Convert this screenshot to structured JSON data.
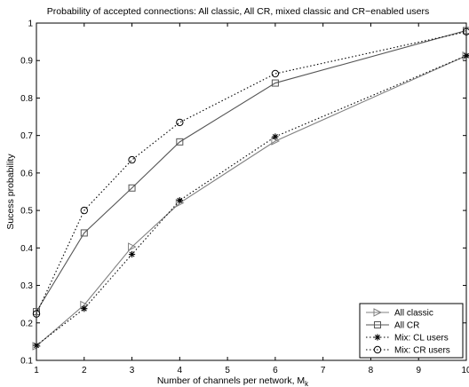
{
  "chart_data": {
    "type": "line",
    "title": "Probability of accepted connections: All classic, All CR, mixed classic and CR−enabled users",
    "xlabel": "Number of channels per network, M",
    "xlabel_sub": "k",
    "ylabel": "Sucess probability",
    "xlim": [
      1,
      10
    ],
    "ylim": [
      0.1,
      1
    ],
    "xticks": [
      "1",
      "2",
      "3",
      "4",
      "5",
      "6",
      "7",
      "8",
      "9",
      "10"
    ],
    "yticks": [
      "0.1",
      "0.2",
      "0.3",
      "0.4",
      "0.5",
      "0.6",
      "0.7",
      "0.8",
      "0.9",
      "1"
    ],
    "grid": false,
    "legend_position": "bottom-right",
    "series": [
      {
        "name": "All classic",
        "color": "#808080",
        "line": "solid",
        "marker": "triangle-right",
        "x": [
          1,
          2,
          3,
          4,
          6,
          10
        ],
        "y": [
          0.138,
          0.248,
          0.403,
          0.52,
          0.685,
          0.913
        ]
      },
      {
        "name": "All CR",
        "color": "#555555",
        "line": "solid",
        "marker": "square",
        "x": [
          1,
          2,
          3,
          4,
          6,
          10
        ],
        "y": [
          0.23,
          0.44,
          0.56,
          0.683,
          0.84,
          0.98
        ]
      },
      {
        "name": "Mix: CL users",
        "color": "#000000",
        "line": "dotted",
        "marker": "asterisk",
        "x": [
          1,
          2,
          3,
          4,
          6,
          10
        ],
        "y": [
          0.14,
          0.238,
          0.383,
          0.527,
          0.697,
          0.913
        ]
      },
      {
        "name": "Mix: CR users",
        "color": "#000000",
        "line": "dotted",
        "marker": "circle",
        "x": [
          1,
          2,
          3,
          4,
          6,
          10
        ],
        "y": [
          0.224,
          0.5,
          0.635,
          0.735,
          0.865,
          0.977
        ]
      }
    ]
  }
}
